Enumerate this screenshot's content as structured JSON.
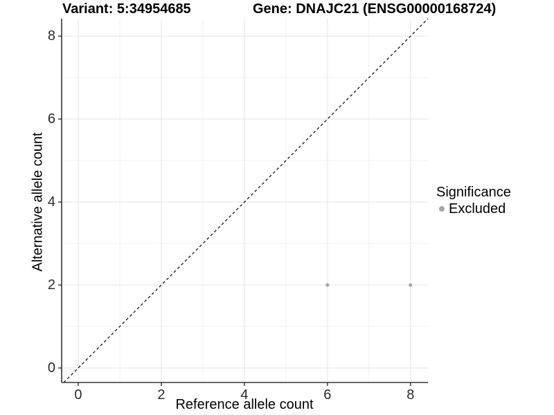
{
  "chart_data": {
    "type": "scatter",
    "title_variant": "Variant: 5:34954685",
    "title_gene": "Gene: DNAJC21 (ENSG00000168724)",
    "xlabel": "Reference allele count",
    "ylabel": "Alternative allele count",
    "xlim": [
      -0.4,
      8.42
    ],
    "ylim": [
      -0.35,
      8.42
    ],
    "xticks": [
      0,
      2,
      4,
      6,
      8
    ],
    "yticks": [
      0,
      2,
      4,
      6,
      8
    ],
    "xticks_minor": [
      1,
      3,
      5,
      7
    ],
    "yticks_minor": [
      1,
      3,
      5,
      7
    ],
    "grid": "major+minor",
    "identity_line": {
      "style": "dashed",
      "color": "#000000",
      "slope": 1,
      "intercept": 0
    },
    "series": [
      {
        "name": "Excluded",
        "color": "#a6a6a6",
        "marker": "circle",
        "points": [
          [
            6,
            2
          ],
          [
            8,
            2
          ]
        ]
      }
    ],
    "legend": {
      "title": "Significance",
      "position": "right",
      "items": [
        {
          "label": "Excluded",
          "color": "#a6a6a6",
          "marker": "circle"
        }
      ]
    },
    "colors": {
      "axis": "#333333",
      "tick_label": "#2b2b2b",
      "grid_major": "#e3e3e3",
      "grid_minor": "#f0f0f0",
      "background": "#ffffff"
    }
  }
}
